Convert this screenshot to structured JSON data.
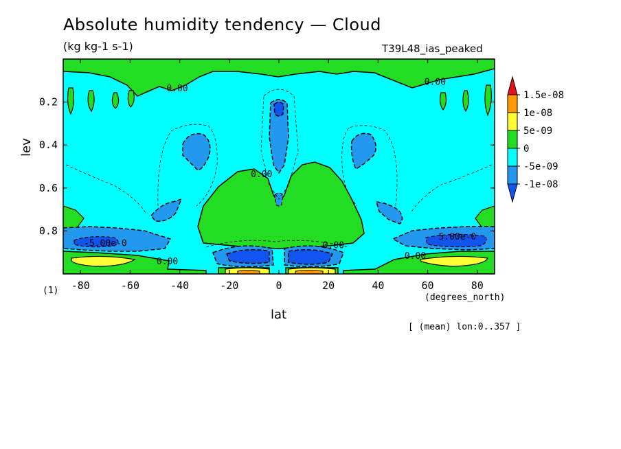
{
  "chart_data": {
    "type": "contour",
    "title": "Absolute humidity tendency — Cloud",
    "subtitle": "(kg kg-1 s-1)",
    "experiment": "T39L48_ias_peaked",
    "xlabel": "lat",
    "xunit": "(degrees_north)",
    "ylabel": "lev",
    "yunit": "(1)",
    "note": "[ (mean) lon:0..357 ]",
    "xlim": [
      -87,
      87
    ],
    "ylim": [
      1.0,
      0.0
    ],
    "xticks": [
      -80,
      -60,
      -40,
      -20,
      0,
      20,
      40,
      60,
      80
    ],
    "yticks": [
      0.2,
      0.4,
      0.6,
      0.8
    ],
    "colorbar": {
      "labels": [
        "1.5e-08",
        "1e-08",
        "5e-09",
        "0",
        "-5e-09",
        "-1e-08"
      ],
      "bands": [
        {
          "min": 1.5e-08,
          "color": "#e8121a"
        },
        {
          "min": 1e-08,
          "max": 1.5e-08,
          "color": "#ff9900"
        },
        {
          "min": 5e-09,
          "max": 1e-08,
          "color": "#ffff33"
        },
        {
          "min": 0,
          "max": 5e-09,
          "color": "#22dd22"
        },
        {
          "min": -5e-09,
          "max": 0,
          "color": "#00ffff"
        },
        {
          "min": -1e-08,
          "max": -5e-09,
          "color": "#2299ee"
        },
        {
          "max": -1e-08,
          "color": "#1155ee"
        }
      ]
    },
    "contour_labels": [
      {
        "text": "0.00",
        "lat": -41,
        "lev": 0.15
      },
      {
        "text": "0.00",
        "lat": 63,
        "lev": 0.12
      },
      {
        "text": "0.00",
        "lat": -7,
        "lev": 0.55
      },
      {
        "text": "0.00",
        "lat": -45,
        "lev": 0.955
      },
      {
        "text": "0.00",
        "lat": 22,
        "lev": 0.88
      },
      {
        "text": "0.00",
        "lat": 55,
        "lev": 0.93
      },
      {
        "text": "-5.00e-0",
        "lat": -70,
        "lev": 0.87
      },
      {
        "text": "5.00e-0",
        "lat": 72,
        "lev": 0.84
      }
    ]
  }
}
